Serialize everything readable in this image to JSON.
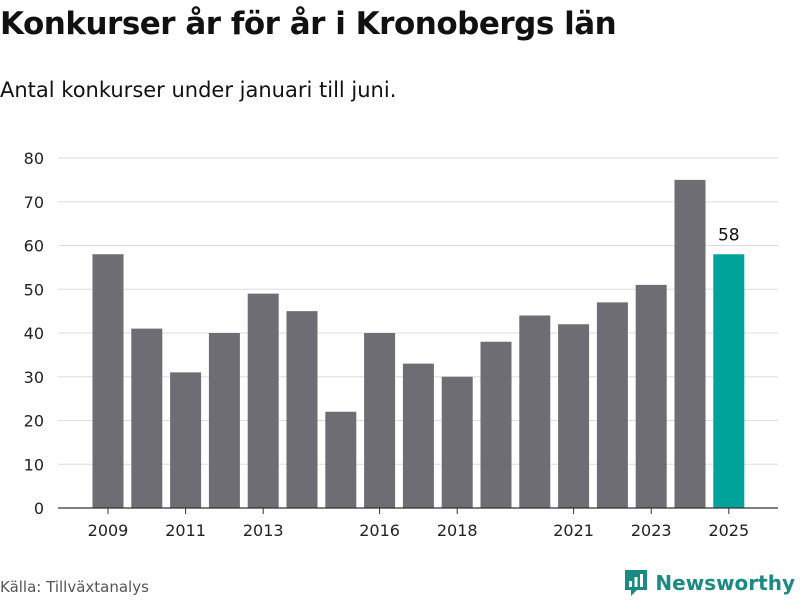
{
  "title": "Konkurser år för år i Kronobergs län",
  "subtitle": "Antal konkurser under januari till juni.",
  "source": "Källa: Tillväxtanalys",
  "brand": "Newsworthy",
  "colors": {
    "bar": "#6e6d73",
    "highlight": "#00a39a",
    "grid": "#dddddd",
    "brand": "#1a8a82"
  },
  "chart_data": {
    "type": "bar",
    "title": "Konkurser år för år i Kronobergs län",
    "subtitle": "Antal konkurser under januari till juni.",
    "categories": [
      "2009",
      "2010",
      "2011",
      "2012",
      "2013",
      "2014",
      "2015",
      "2016",
      "2017",
      "2018",
      "2019",
      "2020",
      "2021",
      "2022",
      "2023",
      "2024",
      "2025"
    ],
    "values": [
      58,
      41,
      31,
      40,
      49,
      45,
      22,
      40,
      33,
      30,
      38,
      44,
      42,
      47,
      51,
      75,
      58
    ],
    "x_tick_labels": [
      "2009",
      "2011",
      "2013",
      "2016",
      "2018",
      "2021",
      "2023",
      "2025"
    ],
    "y_ticks": [
      0,
      10,
      20,
      30,
      40,
      50,
      60,
      70,
      80
    ],
    "ylim": [
      0,
      80
    ],
    "highlight_category": "2025",
    "data_labels": [
      {
        "category": "2025",
        "text": "58"
      }
    ],
    "xlabel": "",
    "ylabel": "",
    "grid": true
  }
}
